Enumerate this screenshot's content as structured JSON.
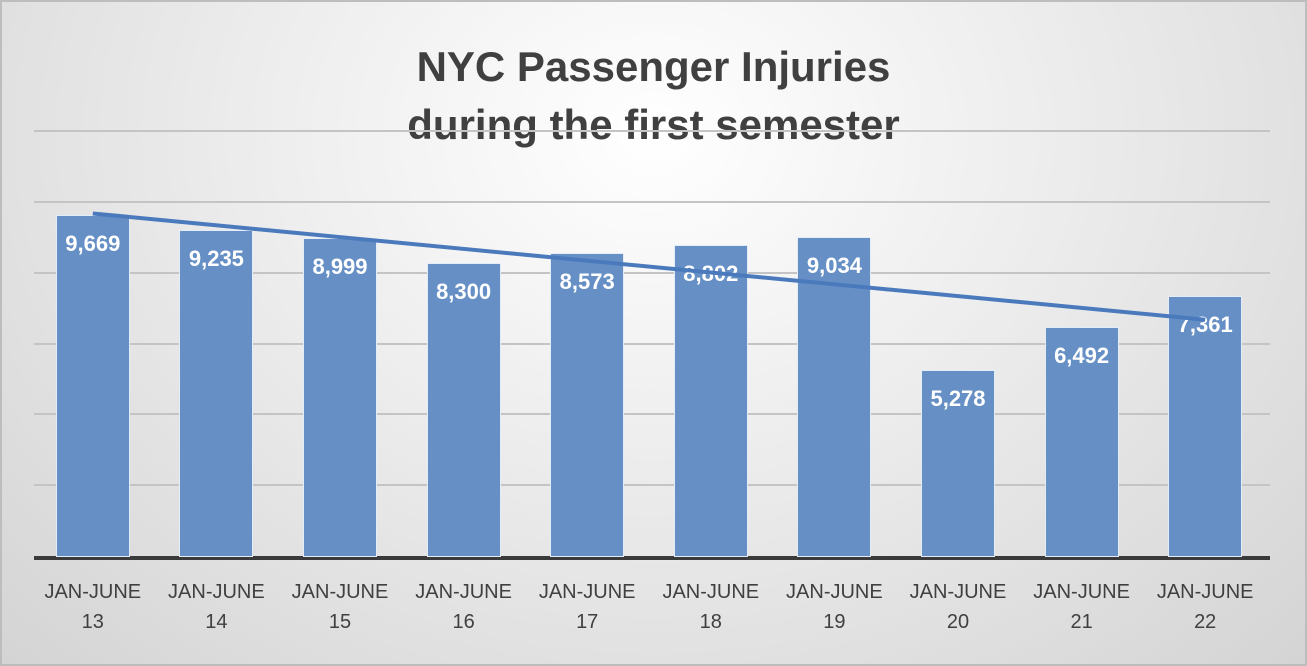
{
  "chart_data": {
    "type": "bar",
    "title": "NYC Passenger Injuries during the first semester",
    "title_lines": [
      "NYC Passenger Injuries",
      "during the first semester"
    ],
    "categories": [
      "JAN-JUNE 13",
      "JAN-JUNE 14",
      "JAN-JUNE 15",
      "JAN-JUNE 16",
      "JAN-JUNE 17",
      "JAN-JUNE 18",
      "JAN-JUNE 19",
      "JAN-JUNE 20",
      "JAN-JUNE 21",
      "JAN-JUNE 22"
    ],
    "category_lines": [
      [
        "JAN-JUNE",
        "13"
      ],
      [
        "JAN-JUNE",
        "14"
      ],
      [
        "JAN-JUNE",
        "15"
      ],
      [
        "JAN-JUNE",
        "16"
      ],
      [
        "JAN-JUNE",
        "17"
      ],
      [
        "JAN-JUNE",
        "18"
      ],
      [
        "JAN-JUNE",
        "19"
      ],
      [
        "JAN-JUNE",
        "20"
      ],
      [
        "JAN-JUNE",
        "21"
      ],
      [
        "JAN-JUNE",
        "22"
      ]
    ],
    "values": [
      9669,
      9235,
      8999,
      8300,
      8573,
      8802,
      9034,
      5278,
      6492,
      7361
    ],
    "value_labels": [
      "9,669",
      "9,235",
      "8,999",
      "8,300",
      "8,573",
      "8,802",
      "9,034",
      "5,278",
      "6,492",
      "7,361"
    ],
    "xlabel": "",
    "ylabel": "",
    "ylim": [
      0,
      12000
    ],
    "grid": true,
    "y_axis_visible": false,
    "trendline": {
      "type": "linear",
      "start": 9700,
      "end": 6700
    },
    "colors": {
      "bar": "#6690c5",
      "trend": "#4a7abc",
      "title": "#404040"
    }
  }
}
